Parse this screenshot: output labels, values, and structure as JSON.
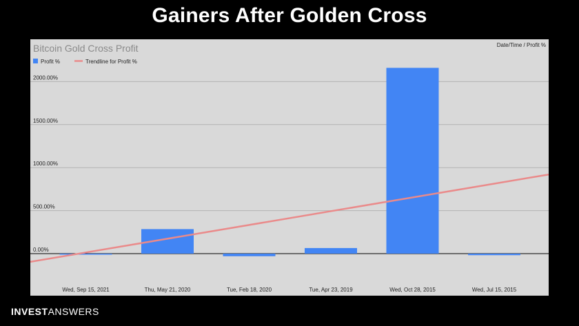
{
  "slide": {
    "title": "Gainers After Golden Cross",
    "brand_bold": "INVEST",
    "brand_light": "ANSWERS"
  },
  "chart_data": {
    "type": "bar",
    "title": "Bitcoin Gold Cross Profit",
    "corner_label": "Date/Time / Profit %",
    "categories": [
      "Wed, Sep 15, 2021",
      "Thu, May 21, 2020",
      "Tue, Feb 18, 2020",
      "Tue, Apr 23, 2019",
      "Wed, Oct 28, 2015",
      "Wed, Jul 15, 2015"
    ],
    "series": [
      {
        "name": "Profit %",
        "color": "#4285f4",
        "values": [
          -5,
          285,
          -30,
          65,
          2160,
          -18
        ]
      }
    ],
    "trendline": {
      "name": "Trendline for Profit %",
      "color": "#ea8a8a",
      "start_value": -95,
      "end_value": 920
    },
    "yticks": [
      0,
      500,
      1000,
      1500,
      2000
    ],
    "ytick_labels": [
      "0.00%",
      "500.00%",
      "1000.00%",
      "1500.00%",
      "2000.00%"
    ],
    "ylim": [
      -480,
      2500
    ],
    "grid": true,
    "legend_position": "top-left"
  }
}
